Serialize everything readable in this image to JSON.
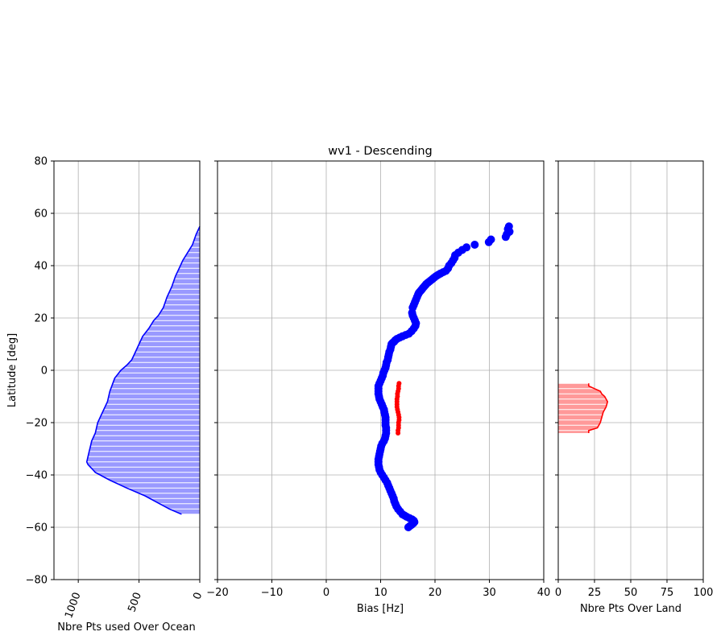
{
  "figure": {
    "title": "wv1 - Descending",
    "colors": {
      "ocean": "#0000ff",
      "ocean_fill": "#9999ff",
      "land": "#ff0000",
      "land_fill": "#ff9999",
      "grid": "#b0b0b0"
    }
  },
  "chart_data": [
    {
      "type": "area",
      "name": "ocean-histogram",
      "xlabel": "Nbre Pts used Over Ocean",
      "ylabel": "Latitude [deg]",
      "xlim": [
        1200,
        0
      ],
      "ylim": [
        -80,
        80
      ],
      "xticks": [
        1000,
        500,
        0
      ],
      "xtick_labels": [
        "1000",
        "500",
        "0"
      ],
      "yticks": [
        -80,
        -60,
        -40,
        -20,
        0,
        20,
        40,
        60,
        80
      ],
      "ytick_labels": [
        "−80",
        "−60",
        "−40",
        "−20",
        "0",
        "20",
        "40",
        "60",
        "80"
      ],
      "grid": true,
      "x": [
        0,
        30,
        60,
        100,
        140,
        170,
        200,
        230,
        270,
        300,
        340,
        380,
        420,
        470,
        500,
        520,
        540,
        560,
        600,
        650,
        700,
        740,
        760,
        800,
        840,
        860,
        890,
        900,
        910,
        920,
        930,
        920,
        900,
        880,
        860,
        820,
        780,
        740,
        600,
        450,
        330,
        250,
        150
      ],
      "y": [
        55,
        52,
        48,
        45,
        42,
        39,
        36,
        32,
        28,
        24,
        21,
        19,
        16,
        13,
        10,
        8,
        6,
        4,
        2,
        0,
        -3,
        -8,
        -12,
        -16,
        -20,
        -24,
        -27,
        -29,
        -31,
        -33,
        -35,
        -36,
        -37,
        -38,
        -39,
        -40,
        -41,
        -42,
        -45,
        -48,
        -51,
        -53,
        -55
      ]
    },
    {
      "type": "scatter",
      "name": "bias-profile",
      "title": "wv1 - Descending",
      "xlabel": "Bias [Hz]",
      "xlim": [
        -20,
        40
      ],
      "ylim": [
        -80,
        80
      ],
      "xticks": [
        -20,
        -10,
        0,
        10,
        20,
        30,
        40
      ],
      "xtick_labels": [
        "−20",
        "−10",
        "0",
        "10",
        "20",
        "30",
        "40"
      ],
      "grid": true,
      "series": [
        {
          "color": "#0000ff",
          "x": [
            33.6,
            33.4,
            33.7,
            33.2,
            33.0,
            30.3,
            29.9,
            27.3,
            25.8,
            25.0,
            24.3,
            23.7,
            23.6,
            23.3,
            23.0,
            22.6,
            22.4,
            22.0,
            21.5,
            21.0,
            20.6,
            20.2,
            19.9,
            19.6,
            19.3,
            19.0,
            18.7,
            18.4,
            18.2,
            18.0,
            17.8,
            17.6,
            17.4,
            17.2,
            17.0,
            16.9,
            16.7,
            16.5,
            16.3,
            16.1,
            15.9,
            15.8,
            15.9,
            16.1,
            16.3,
            16.5,
            16.4,
            16.1,
            15.7,
            15.2,
            14.6,
            14.0,
            13.5,
            13.0,
            12.7,
            12.5,
            12.2,
            12.0,
            11.9,
            11.8,
            11.6,
            11.5,
            11.4,
            11.3,
            11.1,
            11.0,
            10.9,
            10.7,
            10.5,
            10.4,
            10.2,
            10.0,
            9.8,
            9.6,
            9.6,
            9.6,
            9.6,
            9.7,
            9.8,
            10.0,
            10.2,
            10.4,
            10.6,
            10.7,
            10.8,
            10.9,
            10.9,
            10.9,
            10.9,
            11.0,
            11.0,
            11.0,
            10.9,
            10.8,
            10.6,
            10.3,
            10.1,
            10.0,
            9.9,
            9.8,
            9.7,
            9.6,
            9.6,
            9.6,
            9.7,
            9.8,
            10.0,
            10.3,
            10.6,
            10.9,
            11.2,
            11.4,
            11.6,
            11.8,
            12.0,
            12.2,
            12.4,
            12.5,
            12.7,
            12.9,
            13.2,
            13.6,
            14.0,
            14.4,
            14.8,
            15.3,
            15.8,
            16.1,
            16.2,
            16.0,
            15.7,
            15.4,
            15.1
          ],
          "y": [
            55,
            54,
            53,
            52,
            51,
            50,
            49,
            48,
            47,
            46,
            45,
            44,
            43,
            42,
            41,
            40,
            39,
            38,
            37.5,
            37,
            36.5,
            36,
            35.5,
            35,
            34.5,
            34,
            33.5,
            33,
            32.5,
            32,
            31.5,
            31,
            30.5,
            30,
            29.5,
            29,
            28,
            27,
            26,
            25,
            24,
            22,
            21,
            20,
            19,
            18,
            17,
            16,
            15,
            14,
            13.5,
            13,
            12.5,
            12,
            11.5,
            11,
            10.5,
            10,
            9,
            8,
            7,
            6,
            5,
            4,
            3,
            2,
            1,
            0,
            -1,
            -2,
            -3,
            -4,
            -5,
            -6,
            -7,
            -8,
            -9,
            -10,
            -11,
            -12,
            -13,
            -14,
            -15,
            -16,
            -17,
            -18,
            -19,
            -20,
            -21,
            -22,
            -23,
            -24,
            -25,
            -26,
            -27,
            -28,
            -29,
            -30,
            -31,
            -32,
            -33,
            -34,
            -35,
            -36,
            -37,
            -38,
            -39,
            -40,
            -41,
            -42,
            -43,
            -44,
            -45,
            -46,
            -47,
            -48,
            -49,
            -50,
            -51,
            -52,
            -53,
            -54,
            -55,
            -55.5,
            -56,
            -56.5,
            -57,
            -57.5,
            -58,
            -58.5,
            -59,
            -59.5,
            -60
          ]
        },
        {
          "color": "#ff0000",
          "x": [
            13.4,
            13.3,
            13.3,
            13.2,
            13.1,
            13.1,
            13.0,
            13.0,
            13.0,
            13.0,
            13.1,
            13.2,
            13.3,
            13.4,
            13.4,
            13.3,
            13.3,
            13.3,
            13.2,
            13.2
          ],
          "y": [
            -5,
            -6,
            -7,
            -8,
            -9,
            -10,
            -11,
            -12,
            -13,
            -14,
            -15,
            -16,
            -17,
            -18,
            -19,
            -20,
            -21,
            -22,
            -23,
            -24
          ]
        }
      ]
    },
    {
      "type": "area",
      "name": "land-histogram",
      "xlabel": "Nbre Pts Over Land",
      "xlim": [
        0,
        100
      ],
      "ylim": [
        -80,
        80
      ],
      "xticks": [
        0,
        25,
        50,
        75,
        100
      ],
      "xtick_labels": [
        "0",
        "25",
        "50",
        "75",
        "100"
      ],
      "grid": true,
      "x": [
        21,
        21,
        25,
        29,
        30,
        32,
        34,
        33,
        31,
        30,
        29,
        27,
        21,
        21
      ],
      "y": [
        -5,
        -6,
        -7,
        -8,
        -9,
        -10,
        -12,
        -14,
        -16,
        -18,
        -20,
        -22,
        -23,
        -24
      ]
    }
  ]
}
